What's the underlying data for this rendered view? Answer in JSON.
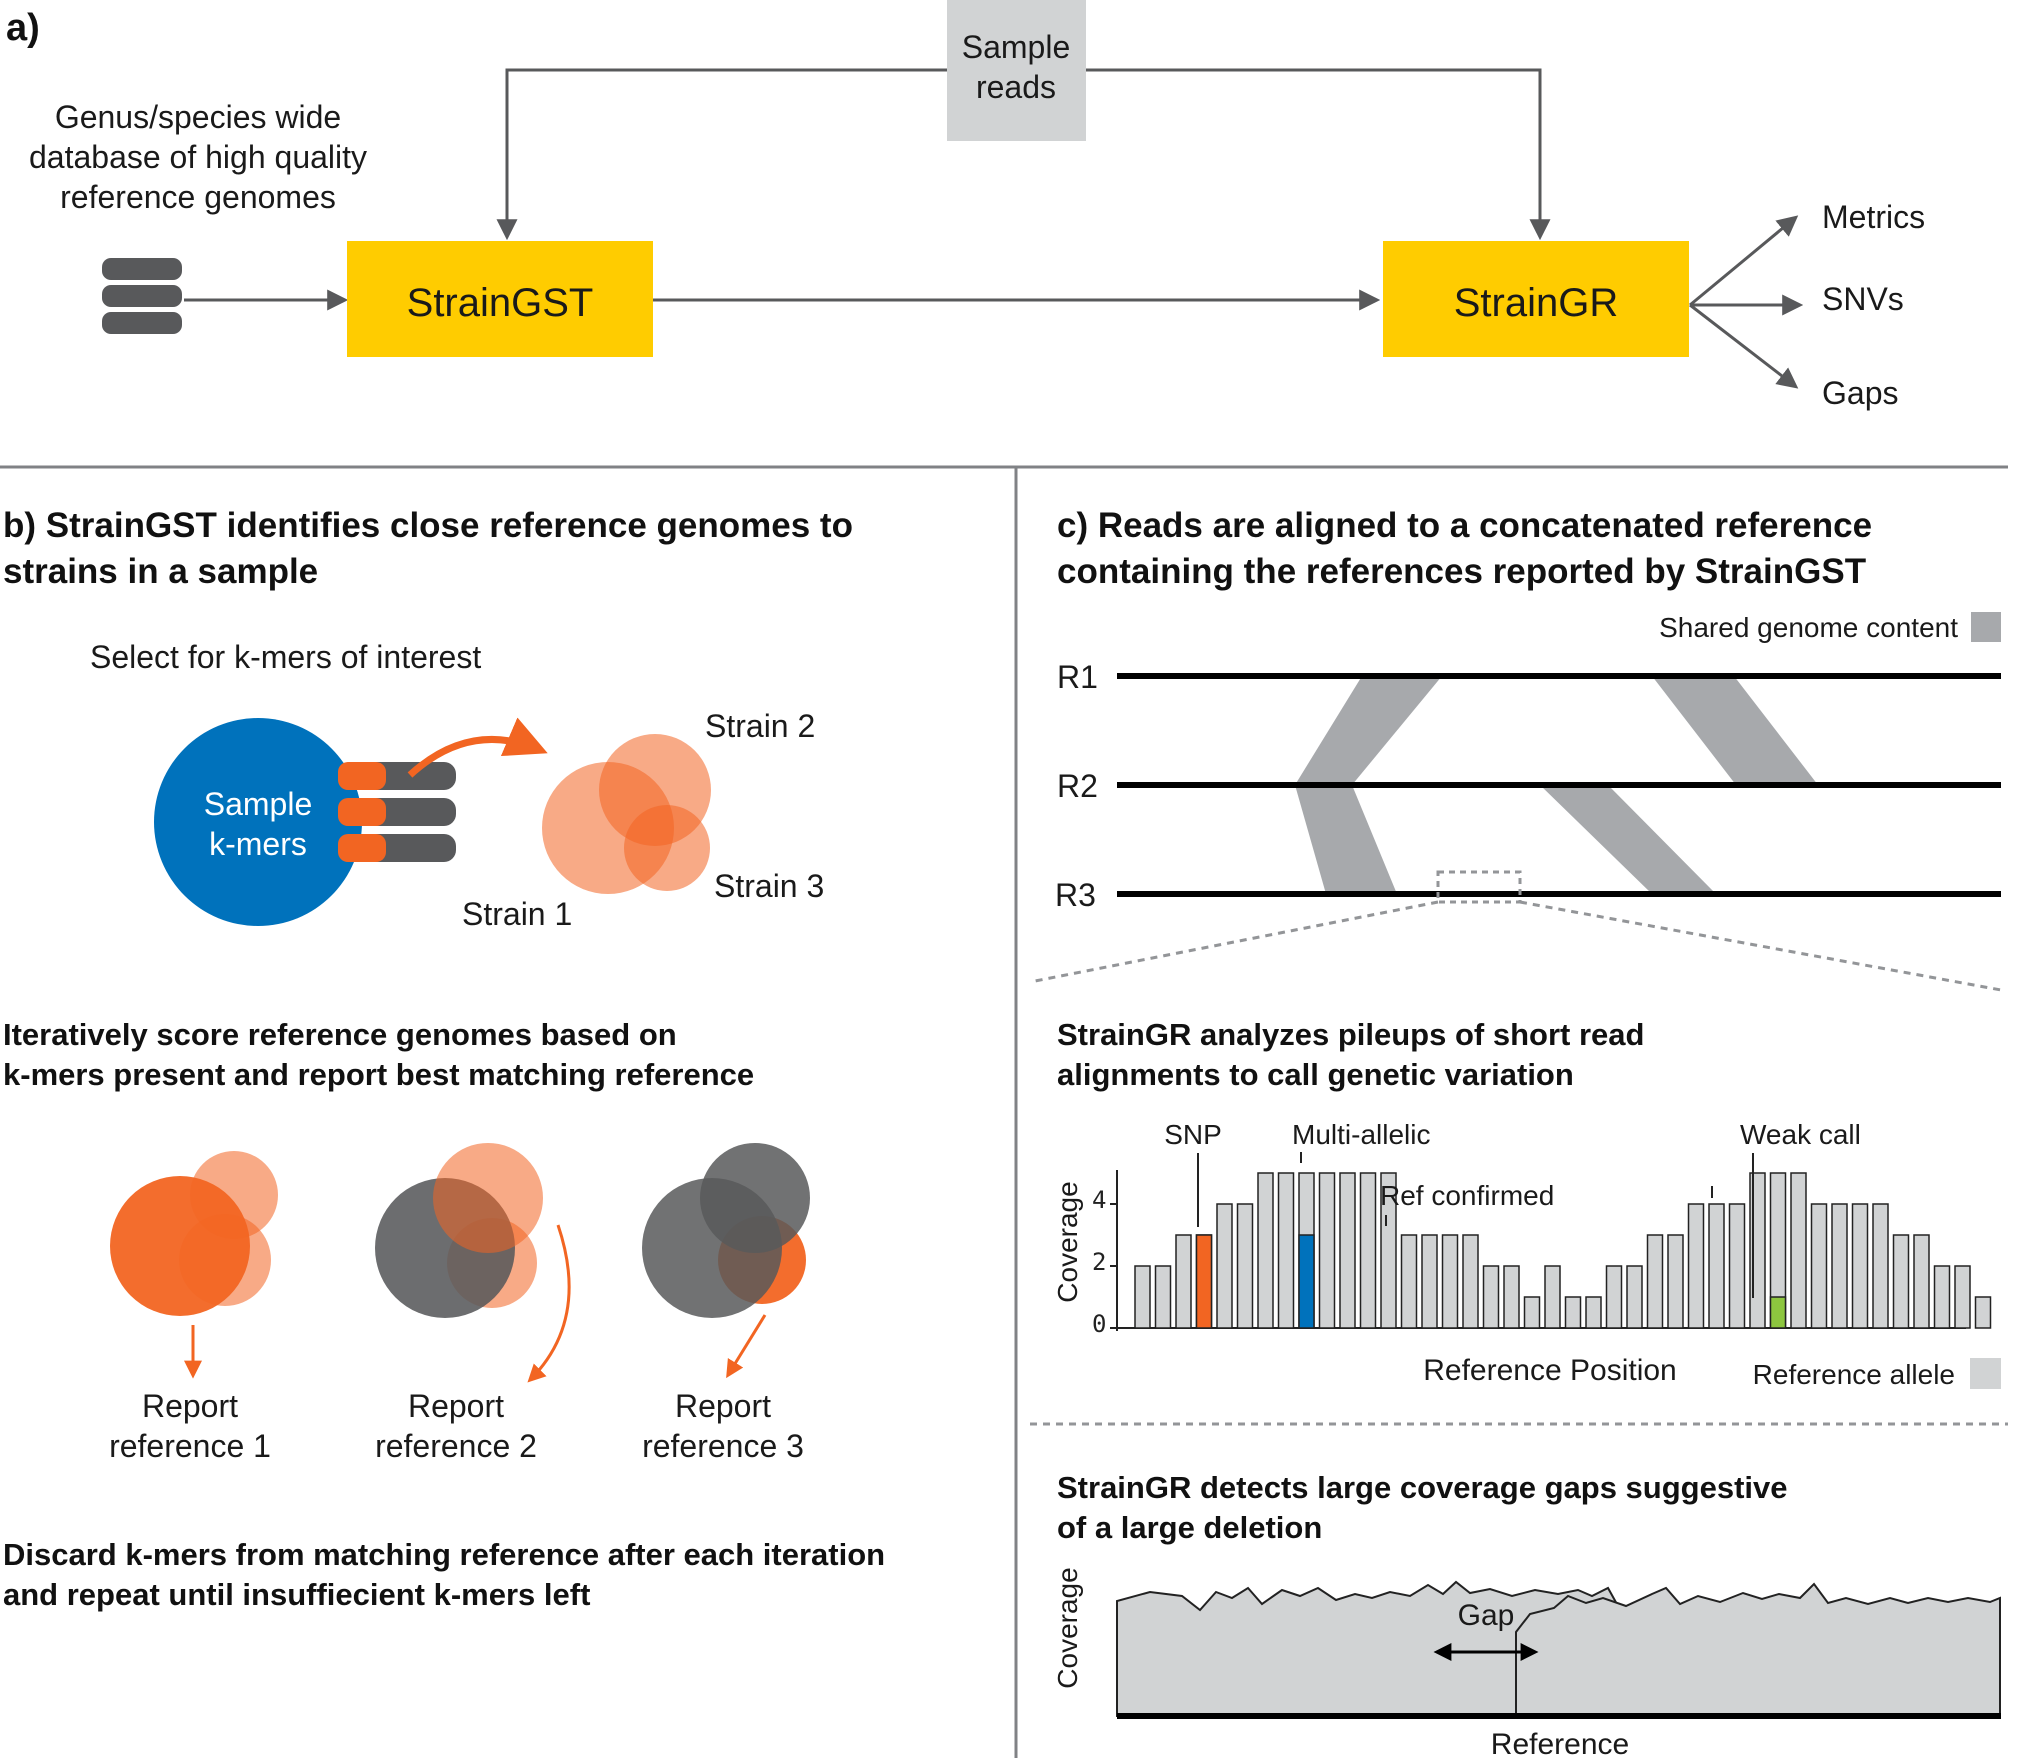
{
  "panel_a": {
    "label": "a)",
    "database_label": [
      "Genus/species wide",
      "database of high quality",
      "reference genomes"
    ],
    "sample_reads": [
      "Sample",
      "reads"
    ],
    "straingst": "StrainGST",
    "straingr": "StrainGR",
    "outputs": [
      "Metrics",
      "SNVs",
      "Gaps"
    ],
    "colors": {
      "box": "#FFCC00",
      "sample_box": "#D1D3D4",
      "arrow": "#58595B"
    }
  },
  "panel_b": {
    "title_lines": [
      "b) StrainGST identifies close reference genomes to",
      "strains in a sample"
    ],
    "select_label": "Select for k-mers of interest",
    "sample_kmers": [
      "Sample",
      "k-mers"
    ],
    "strains": [
      "Strain 1",
      "Strain 2",
      "Strain 3"
    ],
    "iterate_lines": [
      "Iteratively score reference genomes based on",
      "k-mers present and report best matching reference"
    ],
    "reports": [
      [
        "Report",
        "reference 1"
      ],
      [
        "Report",
        "reference 2"
      ],
      [
        "Report",
        "reference 3"
      ]
    ],
    "discard_lines": [
      "Discard k-mers from matching reference after each iteration",
      "and repeat until insuffiecient k-mers left"
    ],
    "colors": {
      "sample": "#0072BC",
      "strain": "#F26522",
      "strain_light": "#F7A08A",
      "done": "#58595B"
    }
  },
  "panel_c": {
    "title_lines": [
      "c) Reads are aligned to a concatenated reference",
      "containing the references reported by StrainGST"
    ],
    "shared_legend": "Shared genome content",
    "refs": [
      "R1",
      "R2",
      "R3"
    ],
    "pileup_title": [
      "StrainGR analyzes pileups of short read",
      "alignments to call genetic variation"
    ],
    "annotations": {
      "snp": "SNP",
      "multi": "Multi-allelic",
      "ref_confirmed": "Ref confirmed",
      "weak": "Weak call"
    },
    "ylabel": "Coverage",
    "xlabel": "Reference Position",
    "ref_allele_legend": "Reference allele",
    "yticks": [
      "0",
      "2",
      "4"
    ],
    "gap_title": [
      "StrainGR detects large coverage gaps suggestive",
      "of a large deletion"
    ],
    "gap_label": "Gap",
    "gap_ylabel": "Coverage",
    "gap_xlabel": "Reference",
    "colors": {
      "shared": "#A7A9AC",
      "bar": "#D1D3D4",
      "snp": "#F26522",
      "multi": "#0072BC",
      "weak": "#8DC63F"
    }
  },
  "chart_data": {
    "type": "bar",
    "xlabel": "Reference Position",
    "ylabel": "Coverage",
    "ylim": [
      0,
      5
    ],
    "values": [
      2,
      2,
      3,
      3,
      4,
      4,
      5,
      5,
      5,
      5,
      5,
      5,
      5,
      3,
      3,
      3,
      3,
      2,
      2,
      1,
      2,
      1,
      1,
      2,
      2,
      3,
      3,
      4,
      4,
      4,
      5,
      5,
      5,
      4,
      4,
      4,
      4,
      3,
      3,
      2,
      2,
      1
    ],
    "highlights": [
      {
        "index": 3,
        "kind": "SNP",
        "value": 3,
        "color": "#F26522"
      },
      {
        "index": 8,
        "kind": "Multi-allelic",
        "value": 3,
        "color": "#0072BC"
      },
      {
        "index": 31,
        "kind": "Weak call",
        "value": 1,
        "color": "#8DC63F"
      }
    ]
  }
}
